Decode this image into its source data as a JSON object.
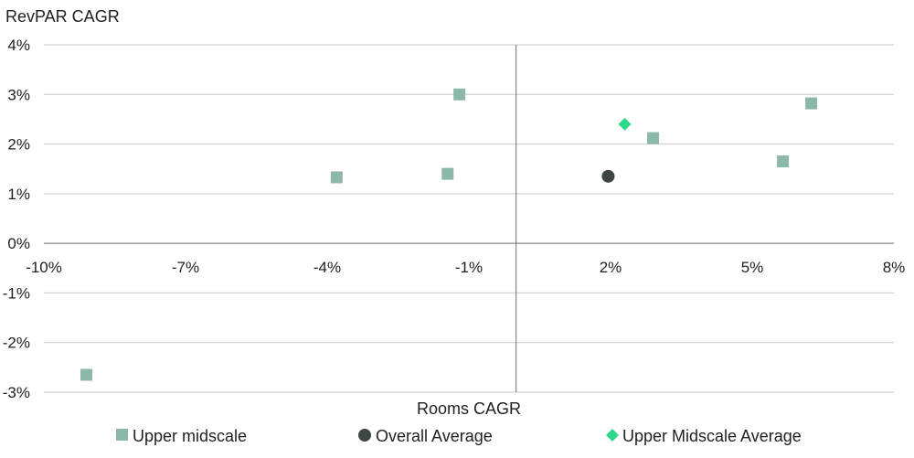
{
  "chart_data": {
    "type": "scatter",
    "ylabel": "RevPAR CAGR",
    "xlabel": "Rooms CAGR",
    "xlim": [
      -10,
      8
    ],
    "ylim": [
      -3,
      4
    ],
    "x_ticks": [
      -10,
      -7,
      -4,
      -1,
      2,
      5,
      8
    ],
    "x_tick_labels": [
      "-10%",
      "-7%",
      "-4%",
      "-1%",
      "2%",
      "5%",
      "8%"
    ],
    "y_ticks": [
      4,
      3,
      2,
      1,
      0,
      -1,
      -2,
      -3
    ],
    "y_tick_labels": [
      "4%",
      "3%",
      "2%",
      "1%",
      "0%",
      "-1%",
      "-2%",
      "-3%"
    ],
    "grid": "horizontal",
    "legend_position": "bottom",
    "series": [
      {
        "name": "Upper midscale",
        "marker": "square",
        "color": "#8bb8aa",
        "points": [
          {
            "x": -9.1,
            "y": -2.65
          },
          {
            "x": -3.8,
            "y": 1.33
          },
          {
            "x": -1.45,
            "y": 1.4
          },
          {
            "x": -1.2,
            "y": 3.0
          },
          {
            "x": 2.9,
            "y": 2.12
          },
          {
            "x": 5.65,
            "y": 1.65
          },
          {
            "x": 6.25,
            "y": 2.82
          }
        ]
      },
      {
        "name": "Overall Average",
        "marker": "circle",
        "color": "#3d4545",
        "points": [
          {
            "x": 1.95,
            "y": 1.35
          }
        ]
      },
      {
        "name": "Upper Midscale Average",
        "marker": "diamond",
        "color": "#2ed88a",
        "points": [
          {
            "x": 2.3,
            "y": 2.4
          }
        ]
      }
    ]
  }
}
